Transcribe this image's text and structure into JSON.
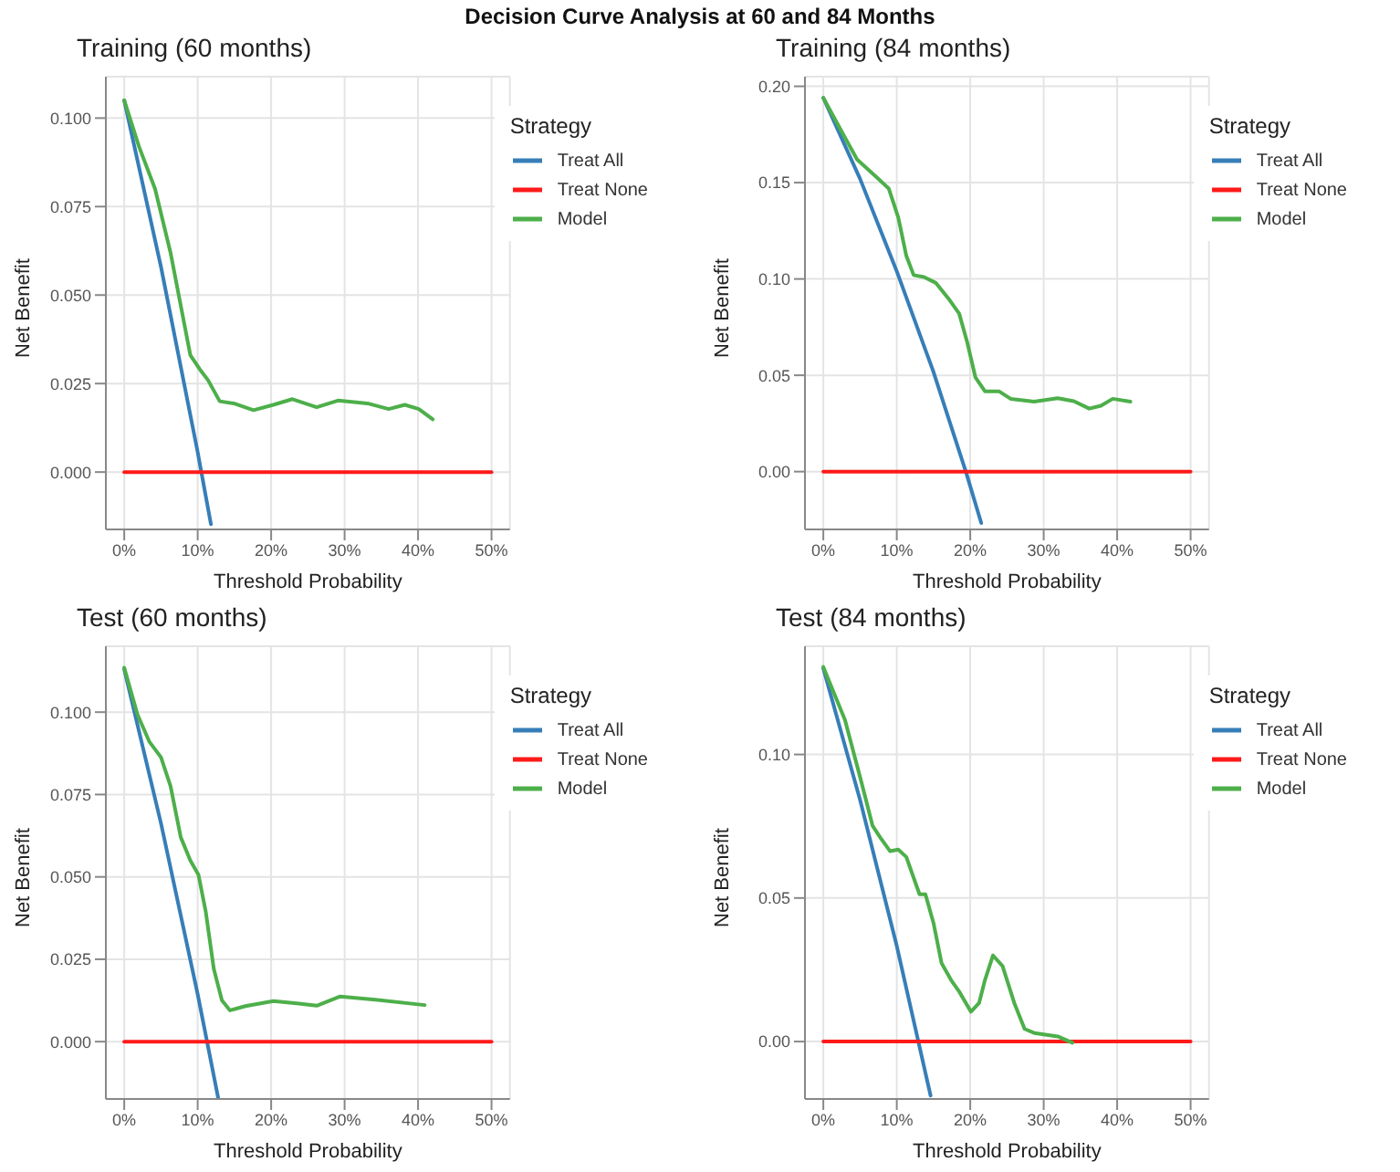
{
  "chart_data": [
    {
      "type": "line",
      "title": "Training (60 months)",
      "annotations": [
        "Decision Curve Analysis at 60 and 84 Months"
      ],
      "xlabel": "Threshold Probability",
      "ylabel": "Net Benefit",
      "legend_title": "Strategy",
      "legend": "top right",
      "grid": true,
      "line_style": "solid",
      "marker": "none",
      "xlim": [
        -0.025,
        0.525
      ],
      "xticks": [
        {
          "value": 0,
          "label": "0%"
        },
        {
          "value": 0.1,
          "label": "10%"
        },
        {
          "value": 0.2,
          "label": "20%"
        },
        {
          "value": 0.3,
          "label": "30%"
        },
        {
          "value": 0.4,
          "label": "40%"
        },
        {
          "value": 0.5,
          "label": "50%"
        }
      ],
      "ylim": [
        -0.0162,
        0.1117
      ],
      "yticks": [
        {
          "value": 0,
          "label": "0.000"
        },
        0.025,
        {
          "value": 0.05,
          "label": "0.050"
        },
        0.075,
        {
          "value": 0.1,
          "label": "0.100"
        }
      ],
      "series": [
        {
          "name": "Treat All",
          "color": "#377eb8",
          "x": [
            0,
            0.05,
            0.1,
            0.118
          ],
          "values": [
            0.105,
            0.058,
            0.0056,
            -0.0147
          ]
        },
        {
          "name": "Treat None",
          "color": "#ff1a1a",
          "x": [
            0,
            0.5
          ],
          "values": [
            0,
            0
          ]
        },
        {
          "name": "Model",
          "color": "#4daf4a",
          "x": [
            0,
            0.02,
            0.042,
            0.063,
            0.09,
            0.103,
            0.114,
            0.13,
            0.149,
            0.176,
            0.203,
            0.229,
            0.262,
            0.291,
            0.331,
            0.36,
            0.382,
            0.401,
            0.42
          ],
          "values": [
            0.105,
            0.092,
            0.08,
            0.062,
            0.033,
            0.029,
            0.026,
            0.02,
            0.0194,
            0.0175,
            0.019,
            0.0206,
            0.0183,
            0.0202,
            0.0194,
            0.0178,
            0.019,
            0.0178,
            0.0149
          ]
        }
      ]
    },
    {
      "type": "line",
      "title": "Training (84 months)",
      "xlabel": "Threshold Probability",
      "ylabel": "Net Benefit",
      "legend_title": "Strategy",
      "legend": "top right",
      "grid": true,
      "line_style": "solid",
      "marker": "none",
      "xlim": [
        -0.025,
        0.525
      ],
      "xticks": [
        {
          "value": 0,
          "label": "0%"
        },
        {
          "value": 0.1,
          "label": "10%"
        },
        {
          "value": 0.2,
          "label": "20%"
        },
        {
          "value": 0.3,
          "label": "30%"
        },
        {
          "value": 0.4,
          "label": "40%"
        },
        {
          "value": 0.5,
          "label": "50%"
        }
      ],
      "ylim": [
        -0.03,
        0.205
      ],
      "yticks": [
        {
          "value": 0,
          "label": "0.00"
        },
        0.05,
        {
          "value": 0.1,
          "label": "0.10"
        },
        0.15,
        {
          "value": 0.2,
          "label": "0.20"
        }
      ],
      "series": [
        {
          "name": "Treat All",
          "color": "#377eb8",
          "x": [
            0,
            0.05,
            0.1,
            0.15,
            0.194,
            0.215
          ],
          "values": [
            0.194,
            0.152,
            0.104,
            0.0517,
            0,
            -0.0267
          ]
        },
        {
          "name": "Treat None",
          "color": "#ff1a1a",
          "x": [
            0,
            0.5
          ],
          "values": [
            0,
            0
          ]
        },
        {
          "name": "Model",
          "color": "#4daf4a",
          "x": [
            0,
            0.03,
            0.046,
            0.072,
            0.089,
            0.102,
            0.113,
            0.123,
            0.137,
            0.153,
            0.172,
            0.185,
            0.196,
            0.207,
            0.22,
            0.239,
            0.255,
            0.287,
            0.319,
            0.341,
            0.362,
            0.378,
            0.394,
            0.418
          ],
          "values": [
            0.194,
            0.173,
            0.162,
            0.153,
            0.147,
            0.132,
            0.112,
            0.102,
            0.101,
            0.098,
            0.089,
            0.082,
            0.067,
            0.049,
            0.0417,
            0.0417,
            0.0378,
            0.0363,
            0.0381,
            0.0366,
            0.0327,
            0.0342,
            0.0378,
            0.0363
          ]
        }
      ]
    },
    {
      "type": "line",
      "title": "Test (60 months)",
      "xlabel": "Threshold Probability",
      "ylabel": "Net Benefit",
      "legend_title": "Strategy",
      "legend": "top right",
      "grid": true,
      "line_style": "solid",
      "marker": "none",
      "xlim": [
        -0.025,
        0.525
      ],
      "xticks": [
        {
          "value": 0,
          "label": "0%"
        },
        {
          "value": 0.1,
          "label": "10%"
        },
        {
          "value": 0.2,
          "label": "20%"
        },
        {
          "value": 0.3,
          "label": "30%"
        },
        {
          "value": 0.4,
          "label": "40%"
        },
        {
          "value": 0.5,
          "label": "50%"
        }
      ],
      "ylim": [
        -0.0174,
        0.12
      ],
      "yticks": [
        {
          "value": 0,
          "label": "0.000"
        },
        0.025,
        {
          "value": 0.05,
          "label": "0.050"
        },
        0.075,
        {
          "value": 0.1,
          "label": "0.100"
        }
      ],
      "series": [
        {
          "name": "Treat All",
          "color": "#377eb8",
          "x": [
            0,
            0.05,
            0.1,
            0.128
          ],
          "values": [
            0.113,
            0.0663,
            0.0144,
            -0.0172
          ]
        },
        {
          "name": "Treat None",
          "color": "#ff1a1a",
          "x": [
            0,
            0.5
          ],
          "values": [
            0,
            0
          ]
        },
        {
          "name": "Model",
          "color": "#4daf4a",
          "x": [
            0,
            0.018,
            0.034,
            0.05,
            0.063,
            0.077,
            0.09,
            0.101,
            0.111,
            0.122,
            0.133,
            0.144,
            0.165,
            0.203,
            0.235,
            0.262,
            0.294,
            0.342,
            0.409
          ],
          "values": [
            0.1135,
            0.0993,
            0.0911,
            0.0863,
            0.0776,
            0.062,
            0.055,
            0.0507,
            0.0394,
            0.022,
            0.0125,
            0.0095,
            0.0108,
            0.0123,
            0.0116,
            0.0109,
            0.0137,
            0.0127,
            0.0111
          ]
        }
      ]
    },
    {
      "type": "line",
      "title": "Test (84 months)",
      "xlabel": "Threshold Probability",
      "ylabel": "Net Benefit",
      "legend_title": "Strategy",
      "legend": "top right",
      "grid": true,
      "line_style": "solid",
      "marker": "none",
      "xlim": [
        -0.025,
        0.525
      ],
      "xticks": [
        {
          "value": 0,
          "label": "0%"
        },
        {
          "value": 0.1,
          "label": "10%"
        },
        {
          "value": 0.2,
          "label": "20%"
        },
        {
          "value": 0.3,
          "label": "30%"
        },
        {
          "value": 0.4,
          "label": "40%"
        },
        {
          "value": 0.5,
          "label": "50%"
        }
      ],
      "ylim": [
        -0.02,
        0.1377
      ],
      "yticks": [
        {
          "value": 0,
          "label": "0.00"
        },
        0.05,
        {
          "value": 0.1,
          "label": "0.10"
        }
      ],
      "series": [
        {
          "name": "Treat All",
          "color": "#377eb8",
          "x": [
            0,
            0.05,
            0.1,
            0.146
          ],
          "values": [
            0.13,
            0.0842,
            0.0333,
            -0.0188
          ]
        },
        {
          "name": "Treat None",
          "color": "#ff1a1a",
          "x": [
            0,
            0.5
          ],
          "values": [
            0,
            0
          ]
        },
        {
          "name": "Model",
          "color": "#4daf4a",
          "x": [
            0,
            0.0295,
            0.051,
            0.067,
            0.078,
            0.091,
            0.102,
            0.113,
            0.124,
            0.131,
            0.139,
            0.15,
            0.161,
            0.174,
            0.185,
            0.201,
            0.212,
            0.22,
            0.231,
            0.244,
            0.26,
            0.274,
            0.287,
            0.319,
            0.339
          ],
          "values": [
            0.1305,
            0.112,
            0.0912,
            0.0752,
            0.0709,
            0.0663,
            0.0669,
            0.0643,
            0.0563,
            0.0513,
            0.0513,
            0.0413,
            0.0273,
            0.0214,
            0.0174,
            0.0104,
            0.0134,
            0.0214,
            0.03,
            0.0263,
            0.0134,
            0.0044,
            0.003,
            0.0018,
            -0.0004
          ]
        }
      ]
    }
  ]
}
